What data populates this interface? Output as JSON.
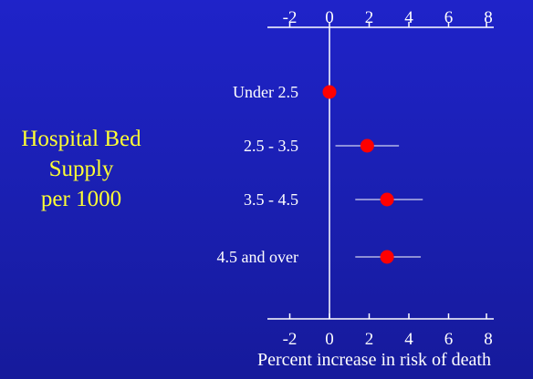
{
  "side_label": {
    "lines": [
      "Hospital Bed",
      "Supply",
      "per 1000"
    ],
    "color": "#ffff33"
  },
  "chart_data": {
    "type": "scatter",
    "title": "",
    "xlabel": "Percent increase in risk of death",
    "ylabel": "Hospital Bed Supply per 1000",
    "xlim": [
      -2,
      8
    ],
    "x_ticks": [
      -2,
      0,
      2,
      4,
      6,
      8
    ],
    "grid": false,
    "categories": [
      "Under 2.5",
      "2.5 - 3.5",
      "3.5 - 4.5",
      "4.5 and over"
    ],
    "values": [
      0,
      1.9,
      2.9,
      2.9
    ],
    "ci_low": [
      0,
      0.3,
      1.3,
      1.3
    ],
    "ci_high": [
      0,
      3.5,
      4.7,
      4.6
    ],
    "point_color": "#ff0000",
    "axis_color": "#ffffff"
  }
}
